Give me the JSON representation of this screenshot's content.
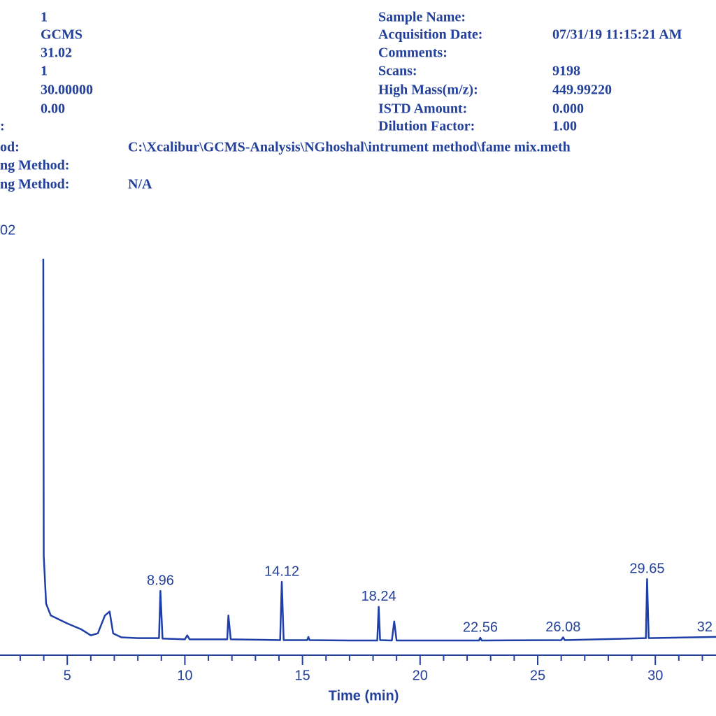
{
  "header": {
    "left_values": [
      "1",
      "GCMS",
      "31.02",
      "1",
      "30.00000",
      "0.00"
    ],
    "right_rows": [
      {
        "label": "Sample Name:"
      },
      {
        "label": "Acquisition Date:",
        "value": "07/31/19 11:15:21 AM"
      },
      {
        "label": "Comments:"
      },
      {
        "label": "Scans:",
        "value": "9198"
      },
      {
        "label": "High Mass(m/z):",
        "value": "449.99220"
      },
      {
        "label": "ISTD Amount:",
        "value": "0.000"
      },
      {
        "label": "Dilution Factor:",
        "value": "1.00"
      }
    ],
    "lower_rows": [
      {
        "label": ":"
      },
      {
        "label": "od:",
        "value": "C:\\Xcalibur\\GCMS-Analysis\\NGhoshal\\intrument method\\fame mix.meth"
      },
      {
        "label": "ng Method:"
      },
      {
        "label": "ng Method:",
        "value": "N/A"
      }
    ],
    "range_label": "02"
  },
  "chart_data": {
    "type": "line",
    "xlabel": "Time (min)",
    "color": "#1f3fa8",
    "x": [
      3.98,
      4.0,
      4.1,
      4.3,
      5.0,
      5.6,
      6.0,
      6.3,
      6.6,
      6.8,
      6.95,
      7.3,
      8.0,
      8.9,
      8.96,
      9.05,
      10.0,
      10.1,
      10.2,
      11.8,
      11.85,
      11.95,
      14.05,
      14.12,
      14.2,
      15.2,
      15.25,
      15.3,
      17.0,
      18.18,
      18.24,
      18.3,
      18.8,
      18.9,
      19.0,
      22.5,
      22.56,
      22.62,
      26.0,
      26.08,
      26.15,
      29.6,
      29.65,
      29.72,
      32.58
    ],
    "values": [
      100,
      25,
      13,
      10,
      8,
      6.5,
      5,
      5.5,
      10,
      11,
      5.5,
      4.5,
      4.3,
      4.3,
      16.2,
      4.2,
      4.0,
      5,
      4,
      4,
      10,
      4,
      3.8,
      18.5,
      3.8,
      3.8,
      4.6,
      3.8,
      3.7,
      3.7,
      12.2,
      3.8,
      3.7,
      8.5,
      3.7,
      3.7,
      4.4,
      3.7,
      3.8,
      4.5,
      3.8,
      4.3,
      19.2,
      4.3,
      4.6
    ],
    "xlim": [
      2.14,
      32.58
    ],
    "ylim": [
      0,
      100
    ],
    "xticks": [
      5,
      10,
      15,
      20,
      25,
      30
    ],
    "xminorticks": [
      3,
      4,
      6,
      7,
      8,
      9,
      11,
      12,
      13,
      14,
      16,
      17,
      18,
      19,
      21,
      22,
      23,
      24,
      26,
      27,
      28,
      29,
      31,
      32
    ],
    "annotations": [
      {
        "text": "8.96",
        "x": 8.96,
        "y": 16.2
      },
      {
        "text": "14.12",
        "x": 14.12,
        "y": 18.5
      },
      {
        "text": "18.24",
        "x": 18.24,
        "y": 12.2
      },
      {
        "text": "22.56",
        "x": 22.56,
        "y": 4.4
      },
      {
        "text": "26.08",
        "x": 26.08,
        "y": 4.5
      },
      {
        "text": "29.65",
        "x": 29.65,
        "y": 19.2
      },
      {
        "text": "32",
        "x": 32.1,
        "y": 4.5
      }
    ]
  }
}
